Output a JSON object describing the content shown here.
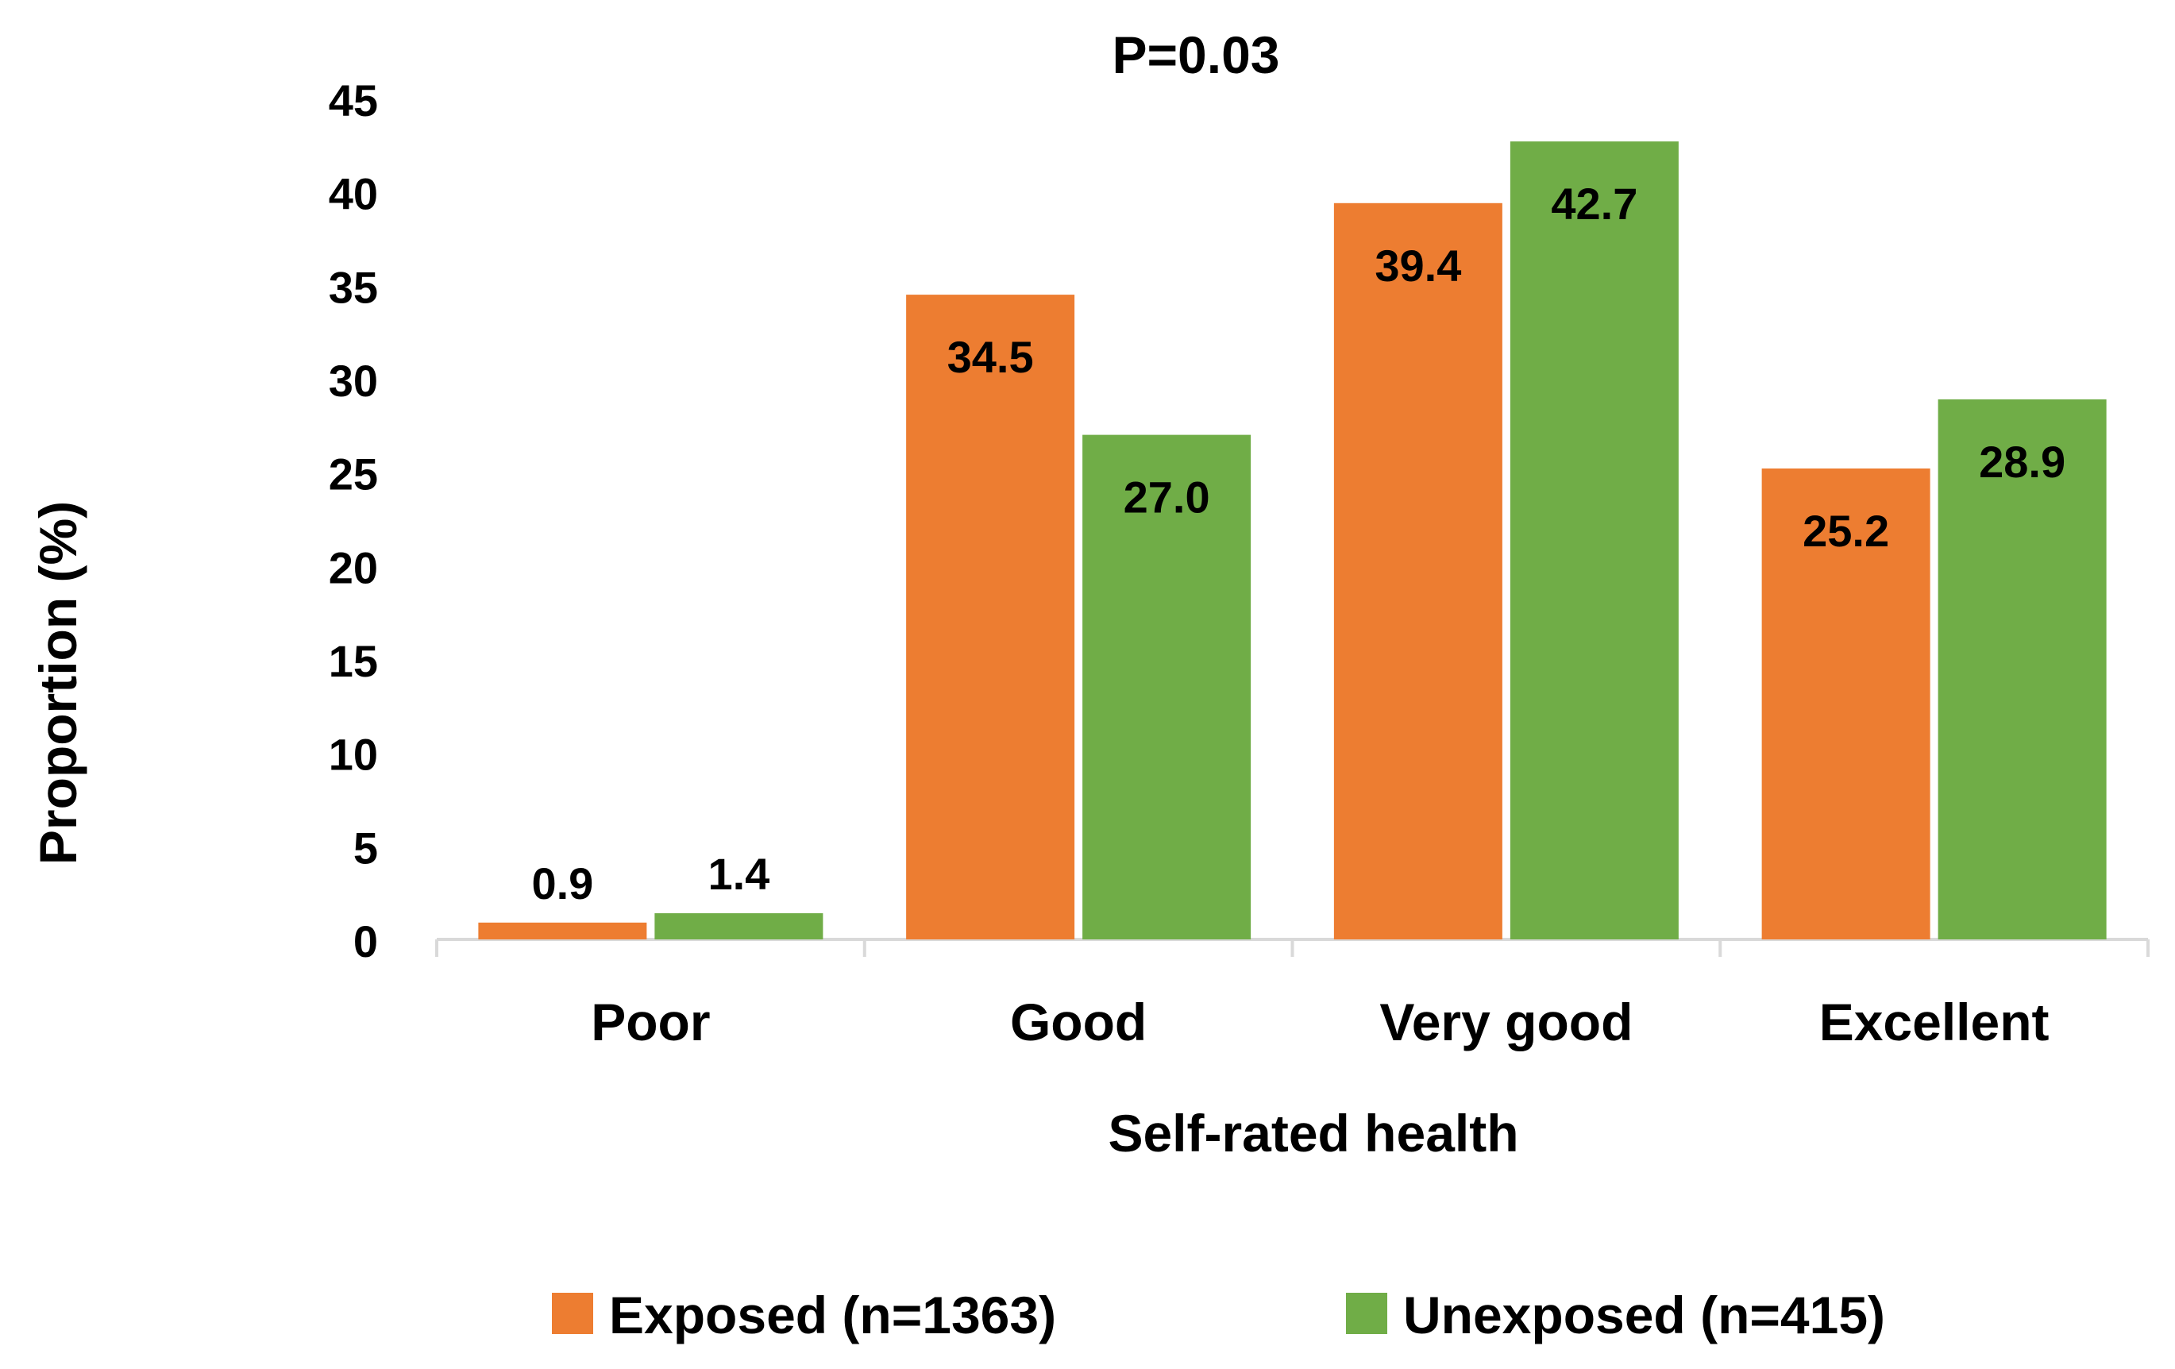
{
  "chart_data": {
    "type": "bar",
    "title": "P=0.03",
    "xlabel": "Self-rated health",
    "ylabel": "Proportion (%)",
    "categories": [
      "Poor",
      "Good",
      "Very good",
      "Excellent"
    ],
    "series": [
      {
        "name": "Exposed (n=1363)",
        "values": [
          0.9,
          34.5,
          39.4,
          25.2
        ],
        "labels": [
          "0.9",
          "34.5",
          "39.4",
          "25.2"
        ],
        "color": "#ED7D31"
      },
      {
        "name": "Unexposed (n=415)",
        "values": [
          1.4,
          27.0,
          42.7,
          28.9
        ],
        "labels": [
          "1.4",
          "27.0",
          "42.7",
          "28.9"
        ],
        "color": "#70AD47"
      }
    ],
    "ylim": [
      0,
      45
    ],
    "yticks": [
      0,
      5,
      10,
      15,
      20,
      25,
      30,
      35,
      40,
      45
    ],
    "ytick_labels": [
      "0",
      "5",
      "10",
      "15",
      "20",
      "25",
      "30",
      "35",
      "40",
      "45"
    ],
    "grid": false,
    "legend_position": "bottom-center",
    "axis_color": "#D9D9D9"
  }
}
